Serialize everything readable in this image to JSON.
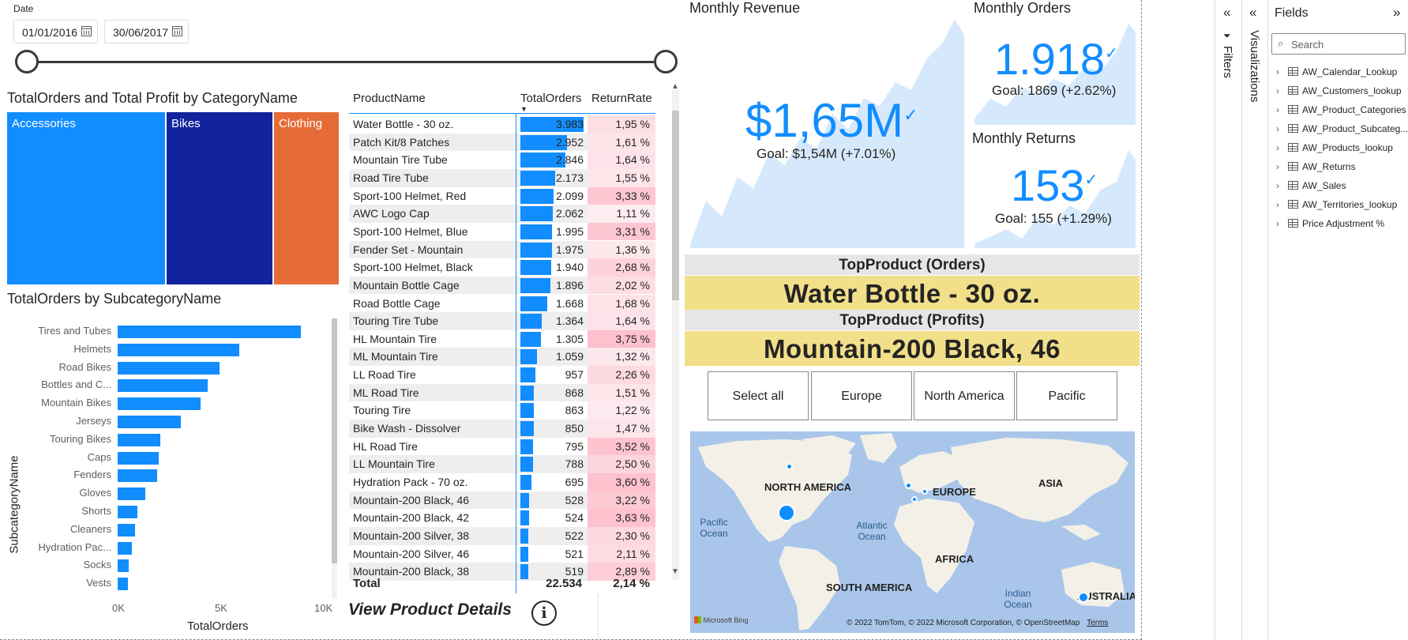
{
  "date_slicer": {
    "title": "Date",
    "start": "01/01/2016",
    "end": "30/06/2017"
  },
  "treemap": {
    "title": "TotalOrders and Total Profit by CategoryName",
    "categories": [
      "Accessories",
      "Bikes",
      "Clothing"
    ],
    "colors": [
      "#118dff",
      "#12239e",
      "#e66c37"
    ]
  },
  "subcategory_chart": {
    "title": "TotalOrders by SubcategoryName",
    "ylabel": "SubcategoryName",
    "xlabel": "TotalOrders",
    "x_ticks": [
      "0K",
      "5K",
      "10K"
    ]
  },
  "chart_data": {
    "type": "bar",
    "categories": [
      "Tires and Tubes",
      "Helmets",
      "Road Bikes",
      "Bottles and C...",
      "Mountain Bikes",
      "Jerseys",
      "Touring Bikes",
      "Caps",
      "Fenders",
      "Gloves",
      "Shorts",
      "Cleaners",
      "Hydration Pac...",
      "Socks",
      "Vests"
    ],
    "values": [
      8900,
      5900,
      4950,
      4380,
      4020,
      3050,
      2070,
      2010,
      1930,
      1330,
      940,
      830,
      700,
      540,
      510
    ],
    "title": "TotalOrders by SubcategoryName",
    "xlabel": "TotalOrders",
    "ylabel": "SubcategoryName",
    "xlim": [
      0,
      10000
    ]
  },
  "product_table": {
    "headers": [
      "ProductName",
      "TotalOrders",
      "ReturnRate"
    ],
    "rows": [
      {
        "name": "Water Bottle - 30 oz.",
        "orders": "3.983",
        "rate": "1,95 %",
        "o": 3983,
        "r": 1.95
      },
      {
        "name": "Patch Kit/8 Patches",
        "orders": "2.952",
        "rate": "1,61 %",
        "o": 2952,
        "r": 1.61
      },
      {
        "name": "Mountain Tire Tube",
        "orders": "2.846",
        "rate": "1,64 %",
        "o": 2846,
        "r": 1.64
      },
      {
        "name": "Road Tire Tube",
        "orders": "2.173",
        "rate": "1,55 %",
        "o": 2173,
        "r": 1.55
      },
      {
        "name": "Sport-100 Helmet, Red",
        "orders": "2.099",
        "rate": "3,33 %",
        "o": 2099,
        "r": 3.33
      },
      {
        "name": "AWC Logo Cap",
        "orders": "2.062",
        "rate": "1,11 %",
        "o": 2062,
        "r": 1.11
      },
      {
        "name": "Sport-100 Helmet, Blue",
        "orders": "1.995",
        "rate": "3,31 %",
        "o": 1995,
        "r": 3.31
      },
      {
        "name": "Fender Set - Mountain",
        "orders": "1.975",
        "rate": "1,36 %",
        "o": 1975,
        "r": 1.36
      },
      {
        "name": "Sport-100 Helmet, Black",
        "orders": "1.940",
        "rate": "2,68 %",
        "o": 1940,
        "r": 2.68
      },
      {
        "name": "Mountain Bottle Cage",
        "orders": "1.896",
        "rate": "2,02 %",
        "o": 1896,
        "r": 2.02
      },
      {
        "name": "Road Bottle Cage",
        "orders": "1.668",
        "rate": "1,68 %",
        "o": 1668,
        "r": 1.68
      },
      {
        "name": "Touring Tire Tube",
        "orders": "1.364",
        "rate": "1,64 %",
        "o": 1364,
        "r": 1.64
      },
      {
        "name": "HL Mountain Tire",
        "orders": "1.305",
        "rate": "3,75 %",
        "o": 1305,
        "r": 3.75
      },
      {
        "name": "ML Mountain Tire",
        "orders": "1.059",
        "rate": "1,32 %",
        "o": 1059,
        "r": 1.32
      },
      {
        "name": "LL Road Tire",
        "orders": "957",
        "rate": "2,26 %",
        "o": 957,
        "r": 2.26
      },
      {
        "name": "ML Road Tire",
        "orders": "868",
        "rate": "1,51 %",
        "o": 868,
        "r": 1.51
      },
      {
        "name": "Touring Tire",
        "orders": "863",
        "rate": "1,22 %",
        "o": 863,
        "r": 1.22
      },
      {
        "name": "Bike Wash - Dissolver",
        "orders": "850",
        "rate": "1,47 %",
        "o": 850,
        "r": 1.47
      },
      {
        "name": "HL Road Tire",
        "orders": "795",
        "rate": "3,52 %",
        "o": 795,
        "r": 3.52
      },
      {
        "name": "LL Mountain Tire",
        "orders": "788",
        "rate": "2,50 %",
        "o": 788,
        "r": 2.5
      },
      {
        "name": "Hydration Pack - 70 oz.",
        "orders": "695",
        "rate": "3,60 %",
        "o": 695,
        "r": 3.6
      },
      {
        "name": "Mountain-200 Black, 46",
        "orders": "528",
        "rate": "3,22 %",
        "o": 528,
        "r": 3.22
      },
      {
        "name": "Mountain-200 Black, 42",
        "orders": "524",
        "rate": "3,63 %",
        "o": 524,
        "r": 3.63
      },
      {
        "name": "Mountain-200 Silver, 38",
        "orders": "522",
        "rate": "2,30 %",
        "o": 522,
        "r": 2.3
      },
      {
        "name": "Mountain-200 Silver, 46",
        "orders": "521",
        "rate": "2,11 %",
        "o": 521,
        "r": 2.11
      },
      {
        "name": "Mountain-200 Black, 38",
        "orders": "519",
        "rate": "2,89 %",
        "o": 519,
        "r": 2.89
      }
    ],
    "total_label": "Total",
    "total_orders": "22.534",
    "total_rate": "2,14 %"
  },
  "view_details": {
    "label": "View Product Details",
    "icon": "info-icon"
  },
  "kpi": {
    "revenue": {
      "title": "Monthly Revenue",
      "value": "$1,65M",
      "goal": "Goal: $1,54M (+7.01%)"
    },
    "orders": {
      "title": "Monthly Orders",
      "value": "1.918",
      "goal": "Goal: 1869 (+2.62%)"
    },
    "returns": {
      "title": "Monthly Returns",
      "value": "153",
      "goal": "Goal: 155 (+1.29%)"
    },
    "check_glyph": "✓"
  },
  "top_product": {
    "orders_title": "TopProduct (Orders)",
    "orders_value": "Water Bottle - 30 oz.",
    "profits_title": "TopProduct (Profits)",
    "profits_value": "Mountain-200 Black, 46"
  },
  "region_slicer": {
    "buttons": [
      "Select all",
      "Europe",
      "North America",
      "Pacific"
    ]
  },
  "map": {
    "continents": {
      "north_america": "NORTH AMERICA",
      "europe": "EUROPE",
      "asia": "ASIA",
      "africa": "AFRICA",
      "south_america": "SOUTH AMERICA",
      "australia": "AUSTRALIA"
    },
    "oceans": {
      "pacific": "Pacific\nOcean",
      "atlantic": "Atlantic\nOcean",
      "indian": "Indian\nOcean"
    },
    "attribution": "© 2022 TomTom, © 2022 Microsoft Corporation, © OpenStreetMap",
    "terms": "Terms",
    "provider": "Microsoft Bing"
  },
  "panes": {
    "filters": "Filters",
    "visualizations": "Visualizations",
    "fields": "Fields",
    "search_placeholder": "Search",
    "field_tables": [
      "AW_Calendar_Lookup",
      "AW_Customers_lookup",
      "AW_Product_Categories",
      "AW_Product_Subcateg...",
      "AW_Products_lookup",
      "AW_Returns",
      "AW_Sales",
      "AW_Territories_lookup",
      "Price Adjustment %"
    ]
  },
  "colors": {
    "accent": "#118dff",
    "kpi_area": "#d6e9fc",
    "card_highlight": "#f2df8a",
    "return_rate_low": "#fde9ec",
    "return_rate_high": "#f9c6cf"
  }
}
